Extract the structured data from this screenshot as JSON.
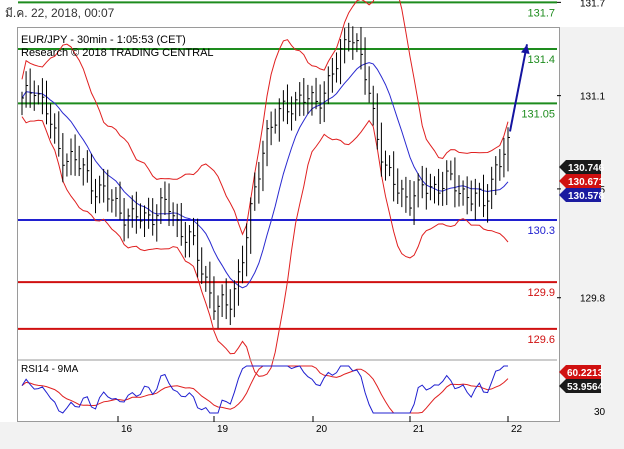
{
  "header": {
    "date": "มี.ค. 22, 2018, 00:07"
  },
  "chart": {
    "title": "EUR/JPY - 30min - 1:05:53 (CET)",
    "subtitle": "Research © 2018 TRADING CENTRAL",
    "rsi_label": "RSI14 - 9MA"
  },
  "colors": {
    "resistance": "#1e8c1e",
    "pivot": "#2020d0",
    "support": "#d01010",
    "bollinger": "#e02020",
    "moving_average": "#2a2ad0",
    "price_bars": "#000000",
    "arrow": "#1414a0"
  },
  "chart_data": {
    "type": "line",
    "y_axis": {
      "ylim": [
        129.45,
        131.8
      ],
      "ticks": [
        "131.7",
        "131.1",
        "130.5",
        "129.8"
      ]
    },
    "x_axis": {
      "ticks": [
        "16",
        "19",
        "20",
        "21",
        "22"
      ]
    },
    "levels": [
      {
        "label": "131.7",
        "value": 131.7,
        "kind": "resistance"
      },
      {
        "label": "131.4",
        "value": 131.4,
        "kind": "resistance"
      },
      {
        "label": "131.05",
        "value": 131.05,
        "kind": "resistance"
      },
      {
        "label": "130.3",
        "value": 130.3,
        "kind": "pivot"
      },
      {
        "label": "129.9",
        "value": 129.9,
        "kind": "support"
      },
      {
        "label": "129.6",
        "value": 129.6,
        "kind": "support"
      }
    ],
    "price_tags": [
      {
        "label": "130.746",
        "value": 130.746,
        "style": "dark"
      },
      {
        "label": "130.671",
        "value": 130.671,
        "style": "red"
      },
      {
        "label": "130.578",
        "value": 130.578,
        "style": "blue"
      }
    ],
    "price_series": [
      131.05,
      131.18,
      131.0,
      130.75,
      130.7,
      130.62,
      130.52,
      130.45,
      130.38,
      130.3,
      130.32,
      130.35,
      130.4,
      130.25,
      130.15,
      129.95,
      129.72,
      129.75,
      130.0,
      130.4,
      130.85,
      130.95,
      131.05,
      131.08,
      131.05,
      131.15,
      131.3,
      131.55,
      131.3,
      130.95,
      130.6,
      130.48,
      130.45,
      130.5,
      130.52,
      130.55,
      130.5,
      130.45,
      130.4,
      130.65,
      130.75
    ],
    "rsi": {
      "y_ticks": [
        "30"
      ],
      "tags": [
        {
          "label": "60.2213",
          "value": 60.2213,
          "style": "red"
        },
        {
          "label": "53.9564",
          "value": 53.9564,
          "style": "dark"
        }
      ]
    }
  }
}
